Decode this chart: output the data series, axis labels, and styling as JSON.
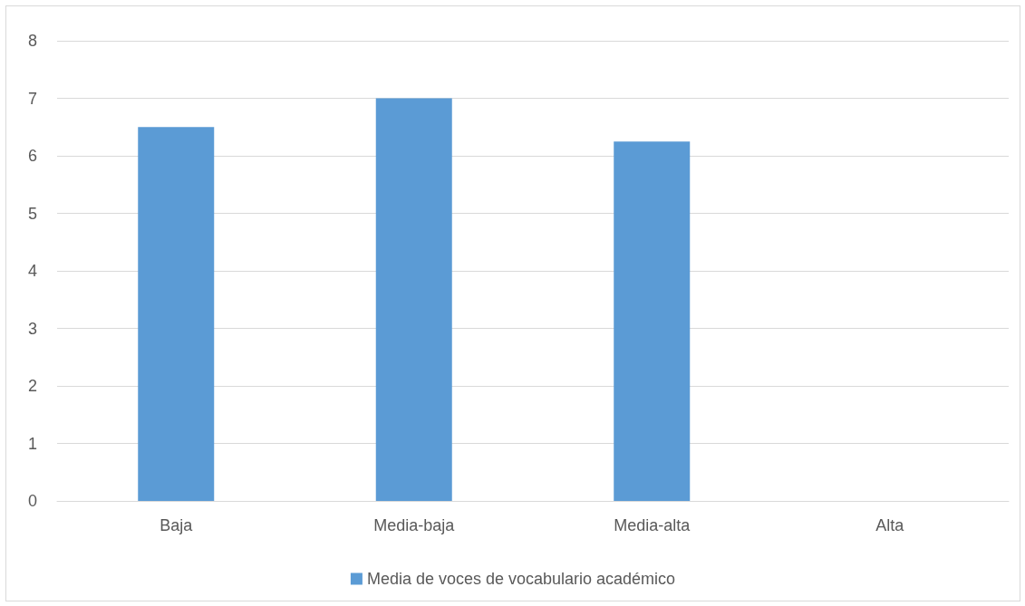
{
  "chart_data": {
    "type": "bar",
    "categories": [
      "Baja",
      "Media-baja",
      "Media-alta",
      "Alta"
    ],
    "series": [
      {
        "name": "Media de voces de vocabulario académico",
        "color": "#5b9bd5",
        "values": [
          6.5,
          7,
          6.25,
          0
        ]
      }
    ],
    "ylim": [
      0,
      8
    ],
    "yticks": [
      0,
      1,
      2,
      3,
      4,
      5,
      6,
      7,
      8
    ],
    "grid": "y",
    "legend": "bottom"
  }
}
